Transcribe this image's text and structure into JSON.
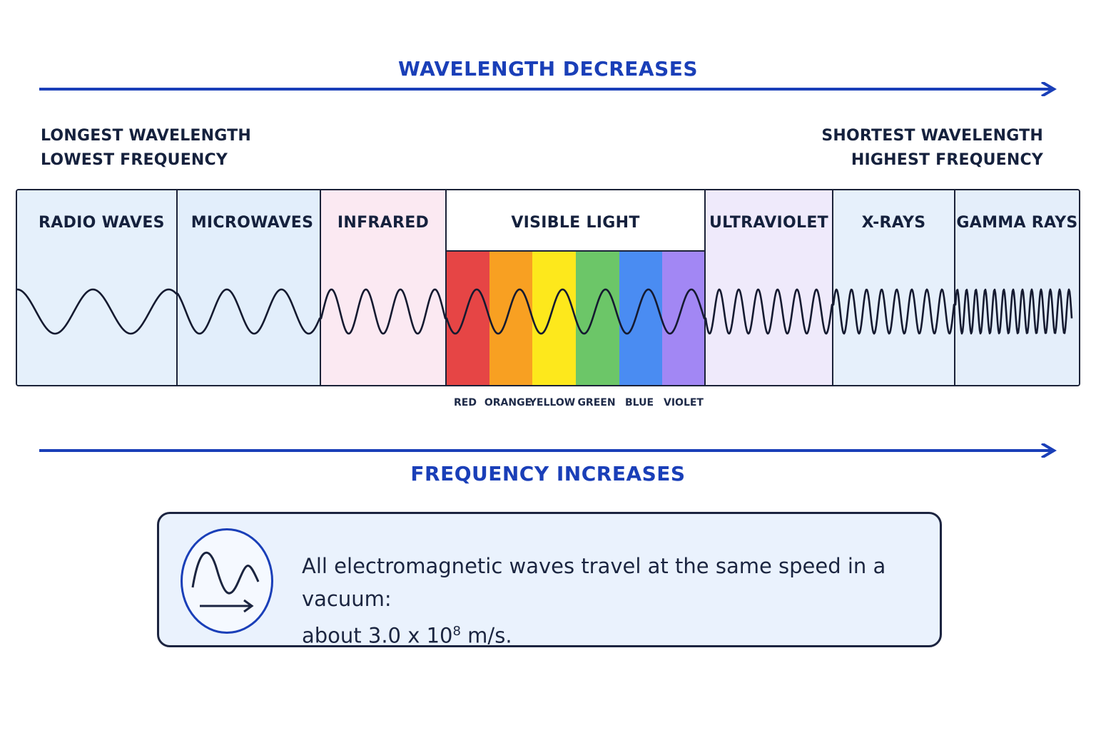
{
  "header": {
    "wavelength_title": "WAVELENGTH DECREASES"
  },
  "ends": {
    "left_line1": "LONGEST WAVELENGTH",
    "left_line2": "LOWEST FREQUENCY",
    "right_line1": "SHORTEST WAVELENGTH",
    "right_line2": "HIGHEST FREQUENCY"
  },
  "bands": [
    {
      "label": "RADIO WAVES",
      "bg": "#e5f0fb"
    },
    {
      "label": "MICROWAVES",
      "bg": "#e2eefb"
    },
    {
      "label": "INFRARED",
      "bg": "#fbe9f2"
    },
    {
      "label": "VISIBLE LIGHT",
      "bg": "#ffffff"
    },
    {
      "label": "ULTRAVIOLET",
      "bg": "#efeafb"
    },
    {
      "label": "X-RAYS",
      "bg": "#e6f0fb"
    },
    {
      "label": "GAMMA RAYS",
      "bg": "#e4eefa"
    }
  ],
  "visible_colors": [
    {
      "label": "RED",
      "color": "#e64545"
    },
    {
      "label": "ORANGE",
      "color": "#f8a022"
    },
    {
      "label": "YELLOW",
      "color": "#fde81c"
    },
    {
      "label": "GREEN",
      "color": "#6cc668"
    },
    {
      "label": "BLUE",
      "color": "#4a8cf2"
    },
    {
      "label": "VIOLET",
      "color": "#a287f4"
    }
  ],
  "footer": {
    "frequency_title": "FREQUENCY INCREASES"
  },
  "note": {
    "text_line1": "All electromagnetic waves travel at the same speed in a vacuum:",
    "text_prefix": "about 3.0 x 10",
    "exponent": "8",
    "text_suffix": " m/s.",
    "icon": "wave-arrow-icon"
  },
  "colors": {
    "accent": "#1a3fb8",
    "outline": "#1b2238"
  }
}
